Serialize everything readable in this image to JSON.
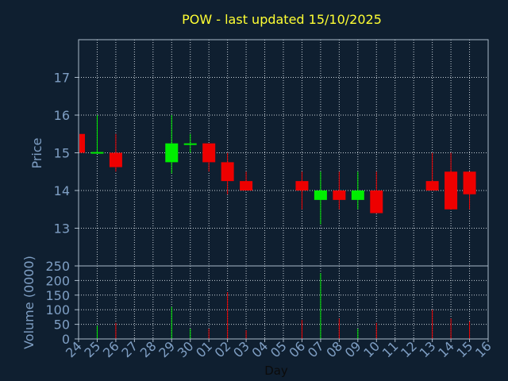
{
  "chart_data": {
    "type": "candlestick",
    "title": "POW - last updated 15/10/2025",
    "xlabel": "Day",
    "price_panel": {
      "ylabel": "Price",
      "yticks": [
        13,
        14,
        15,
        16,
        17
      ],
      "ylim": [
        12.0,
        18.0
      ]
    },
    "volume_panel": {
      "ylabel": "Volume (0000)",
      "yticks": [
        0,
        50,
        100,
        150,
        200,
        250
      ],
      "ylim": [
        0,
        250
      ]
    },
    "x_tick_labels": [
      "24",
      "25",
      "26",
      "27",
      "28",
      "29",
      "30",
      "01",
      "02",
      "03",
      "04",
      "05",
      "06",
      "07",
      "08",
      "09",
      "10",
      "11",
      "12",
      "13",
      "14",
      "15",
      "16"
    ],
    "candles": [
      {
        "day": "24",
        "open": 15.5,
        "high": 15.5,
        "low": 15.0,
        "close": 15.0,
        "volume": 0
      },
      {
        "day": "25",
        "open": 15.0,
        "high": 16.0,
        "low": 15.0,
        "close": 15.02,
        "volume": 45
      },
      {
        "day": "26",
        "open": 15.0,
        "high": 15.5,
        "low": 14.5,
        "close": 14.62,
        "volume": 55
      },
      {
        "day": "29",
        "open": 14.75,
        "high": 16.0,
        "low": 14.45,
        "close": 15.25,
        "volume": 110
      },
      {
        "day": "30",
        "open": 15.22,
        "high": 15.5,
        "low": 15.0,
        "close": 15.25,
        "volume": 35
      },
      {
        "day": "01",
        "open": 15.25,
        "high": 15.25,
        "low": 14.5,
        "close": 14.75,
        "volume": 35
      },
      {
        "day": "02",
        "open": 14.75,
        "high": 15.0,
        "low": 13.9,
        "close": 14.25,
        "volume": 160
      },
      {
        "day": "03",
        "open": 14.25,
        "high": 14.5,
        "low": 14.0,
        "close": 14.0,
        "volume": 30
      },
      {
        "day": "06",
        "open": 14.25,
        "high": 14.5,
        "low": 13.5,
        "close": 14.0,
        "volume": 65
      },
      {
        "day": "07",
        "open": 13.75,
        "high": 14.5,
        "low": 13.1,
        "close": 14.0,
        "volume": 225
      },
      {
        "day": "08",
        "open": 14.0,
        "high": 14.5,
        "low": 13.5,
        "close": 13.75,
        "volume": 70
      },
      {
        "day": "09",
        "open": 13.75,
        "high": 14.5,
        "low": 13.5,
        "close": 14.0,
        "volume": 35
      },
      {
        "day": "10",
        "open": 14.0,
        "high": 14.5,
        "low": 13.4,
        "close": 13.4,
        "volume": 55
      },
      {
        "day": "13",
        "open": 14.25,
        "high": 15.0,
        "low": 14.0,
        "close": 14.0,
        "volume": 100
      },
      {
        "day": "14",
        "open": 14.5,
        "high": 15.0,
        "low": 13.5,
        "close": 13.5,
        "volume": 70
      },
      {
        "day": "15",
        "open": 14.5,
        "high": 14.5,
        "low": 13.5,
        "close": 13.9,
        "volume": 60
      }
    ],
    "grid": true,
    "legend": "none"
  },
  "colors": {
    "background": "#0f1f30",
    "axes_face": "#0f1f30",
    "frame": "#a8b8c8",
    "grid": "#c8d0d8",
    "title": "#ffff33",
    "label": "#7f9fc4",
    "up": "#00ee00",
    "down": "#ee0000"
  }
}
